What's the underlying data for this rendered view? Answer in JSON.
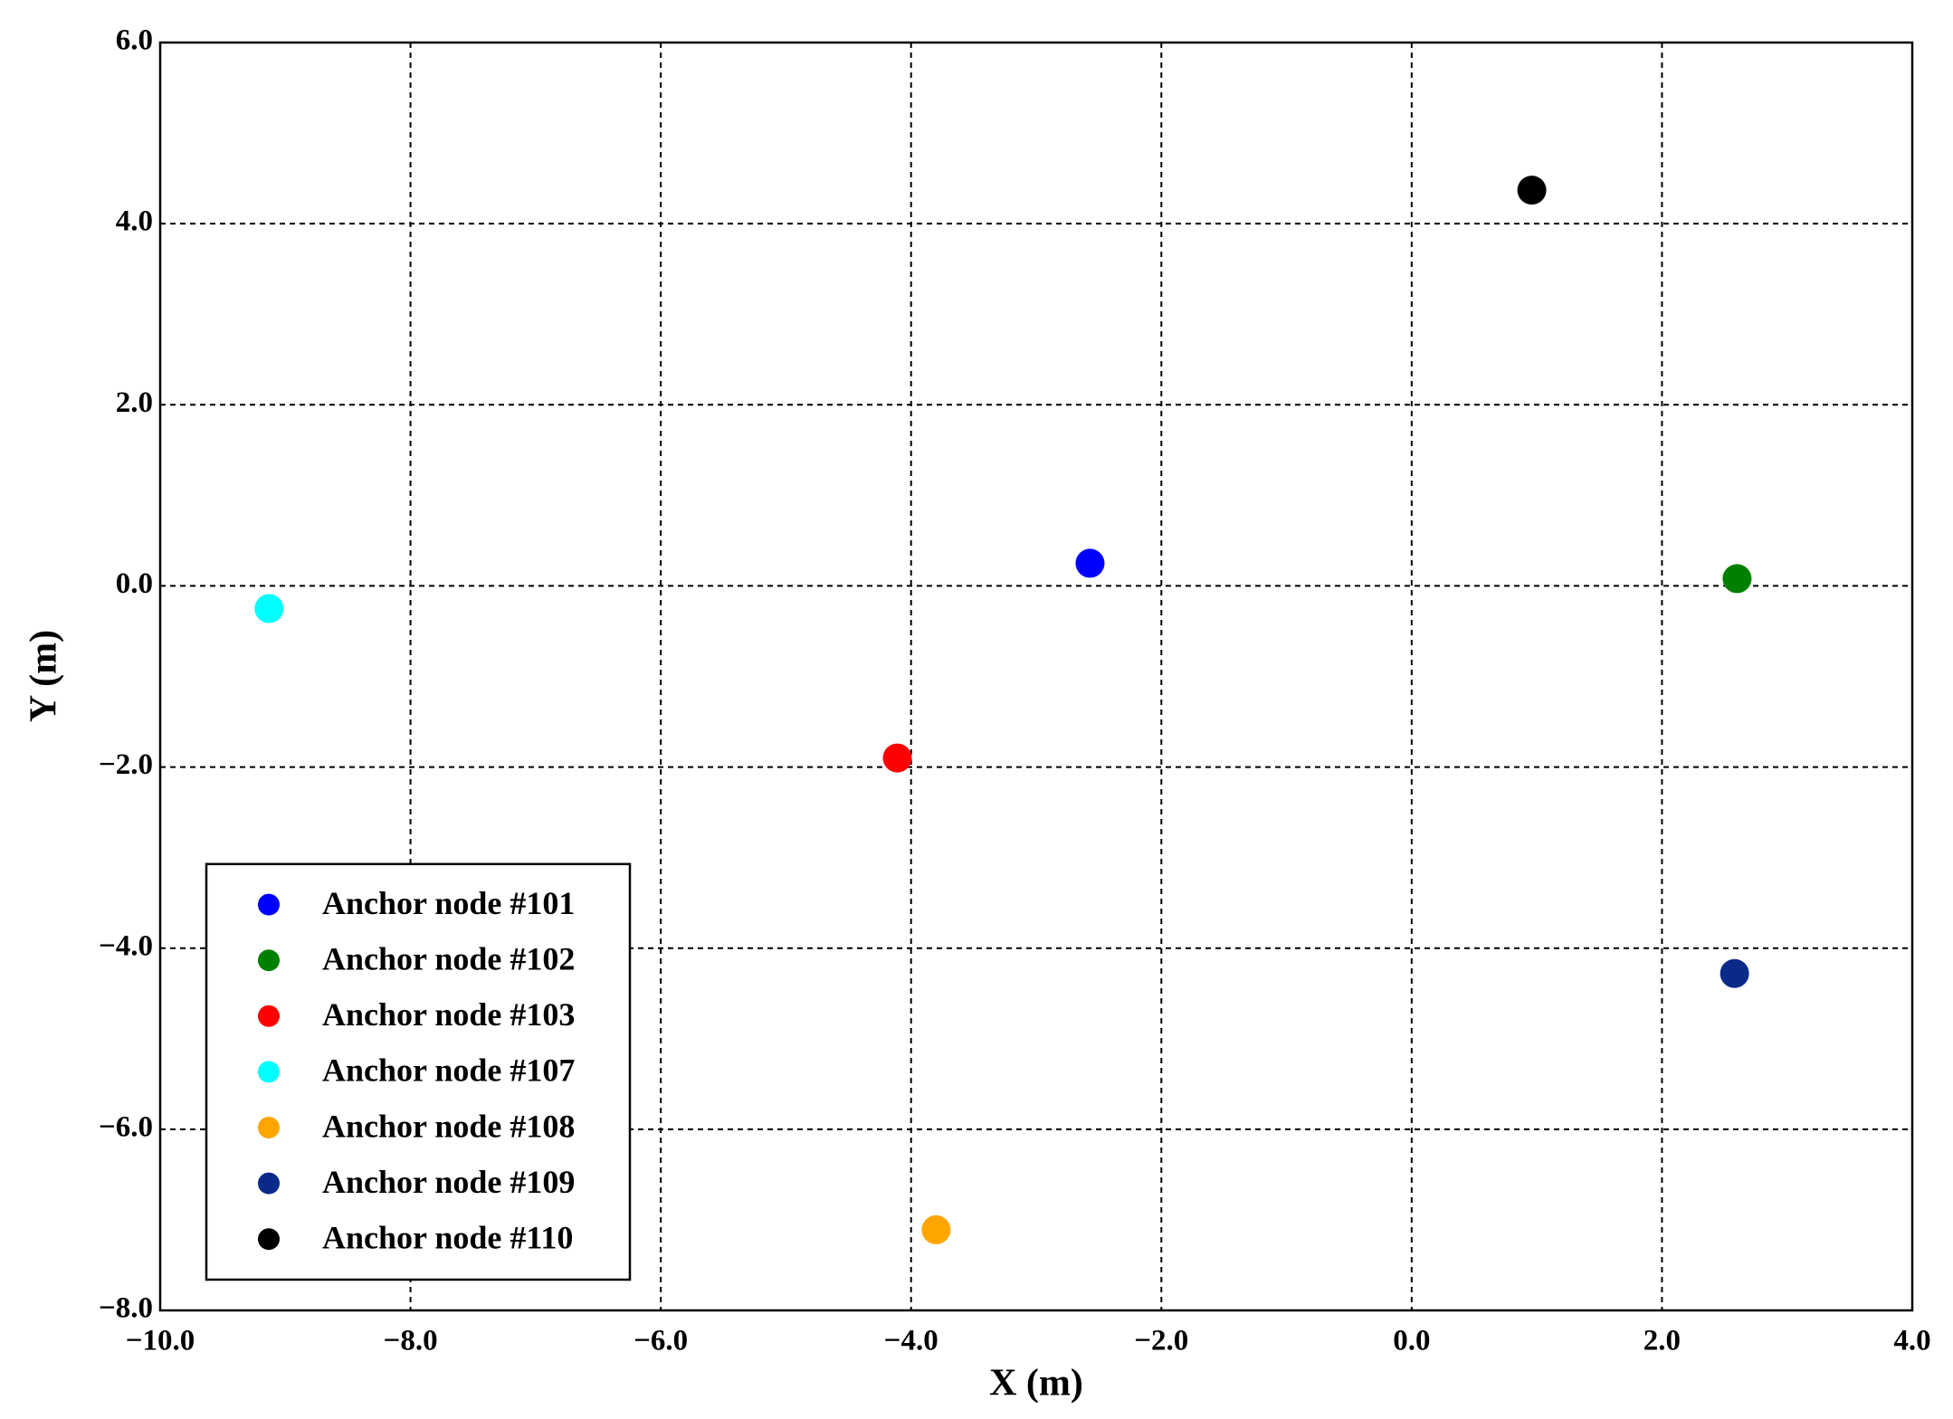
{
  "chart_data": {
    "type": "scatter",
    "xlabel": "X (m)",
    "ylabel": "Y (m)",
    "xlim": [
      -10,
      4
    ],
    "ylim": [
      -8,
      6
    ],
    "xticks": [
      {
        "value": -10,
        "label": "−10.0"
      },
      {
        "value": -8,
        "label": "−8.0"
      },
      {
        "value": -6,
        "label": "−6.0"
      },
      {
        "value": -4,
        "label": "−4.0"
      },
      {
        "value": -2,
        "label": "−2.0"
      },
      {
        "value": 0,
        "label": "0.0"
      },
      {
        "value": 2,
        "label": "2.0"
      },
      {
        "value": 4,
        "label": "4.0"
      }
    ],
    "yticks": [
      {
        "value": -8,
        "label": "−8.0"
      },
      {
        "value": -6,
        "label": "−6.0"
      },
      {
        "value": -4,
        "label": "−4.0"
      },
      {
        "value": -2,
        "label": "−2.0"
      },
      {
        "value": 0,
        "label": "0.0"
      },
      {
        "value": 2,
        "label": "2.0"
      },
      {
        "value": 4,
        "label": "4.0"
      },
      {
        "value": 6,
        "label": "6.0"
      }
    ],
    "grid": true,
    "legend": "lower left",
    "series": [
      {
        "name": "Anchor node #101",
        "color": "#0000ff",
        "x": [
          -2.57
        ],
        "values": [
          0.25
        ]
      },
      {
        "name": "Anchor node #102",
        "color": "#008000",
        "x": [
          2.6
        ],
        "values": [
          0.08
        ]
      },
      {
        "name": "Anchor node #103",
        "color": "#ff0000",
        "x": [
          -4.11
        ],
        "values": [
          -1.9
        ]
      },
      {
        "name": "Anchor node #107",
        "color": "#00ffff",
        "x": [
          -9.13
        ],
        "values": [
          -0.25
        ]
      },
      {
        "name": "Anchor node #108",
        "color": "#ffa500",
        "x": [
          -3.8
        ],
        "values": [
          -7.11
        ]
      },
      {
        "name": "Anchor node #109",
        "color": "#0a2a8a",
        "x": [
          2.58
        ],
        "values": [
          -4.28
        ]
      },
      {
        "name": "Anchor node #110",
        "color": "#000000",
        "x": [
          0.96
        ],
        "values": [
          4.37
        ]
      }
    ]
  }
}
